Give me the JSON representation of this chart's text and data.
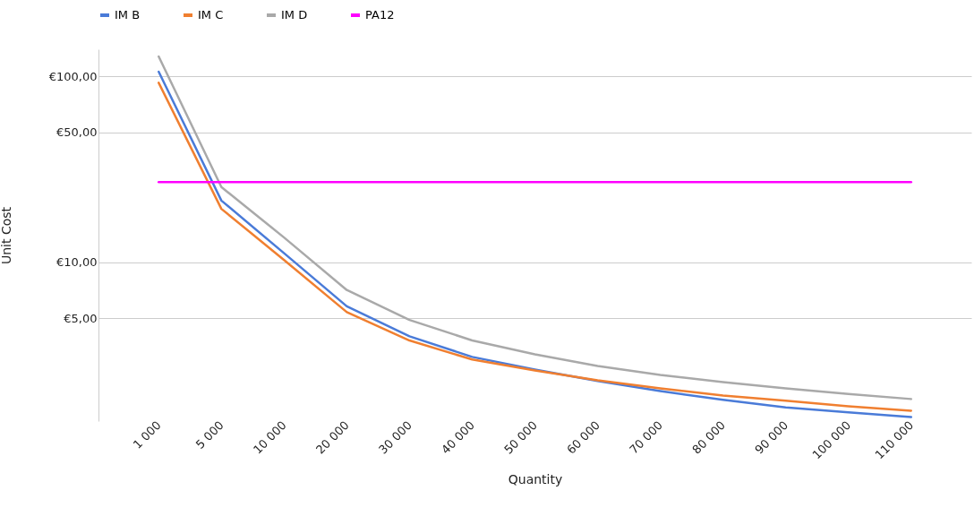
{
  "chart_data": {
    "type": "line",
    "xlabel": "Quantity",
    "ylabel": "Unit Cost",
    "categories": [
      "1 000",
      "5 000",
      "10 000",
      "20 000",
      "30 000",
      "40 000",
      "50 000",
      "60 000",
      "70 000",
      "80 000",
      "90 000",
      "100 000",
      "110 000"
    ],
    "series": [
      {
        "name": "IM B",
        "color": "#4a7bd8",
        "values": [
          106,
          21.5,
          11.2,
          5.8,
          4.0,
          3.1,
          2.65,
          2.3,
          2.03,
          1.82,
          1.66,
          1.56,
          1.47
        ]
      },
      {
        "name": "IM C",
        "color": "#f07f30",
        "values": [
          92.5,
          19.4,
          10.3,
          5.4,
          3.8,
          3.0,
          2.62,
          2.32,
          2.1,
          1.92,
          1.8,
          1.68,
          1.59
        ]
      },
      {
        "name": "IM D",
        "color": "#a9a9a9",
        "values": [
          128,
          25.4,
          13.6,
          7.1,
          4.9,
          3.8,
          3.2,
          2.77,
          2.48,
          2.27,
          2.1,
          1.96,
          1.84
        ]
      },
      {
        "name": "PA12",
        "color": "#ff00ff",
        "values": [
          27,
          27,
          27,
          27,
          27,
          27,
          27,
          27,
          27,
          27,
          27,
          27,
          27
        ]
      }
    ],
    "log": true,
    "ylim": [
      1.4,
      140
    ],
    "yticks": [
      {
        "value": 5,
        "label": "€5,00"
      },
      {
        "value": 10,
        "label": "€10,00"
      },
      {
        "value": 50,
        "label": "€50,00"
      },
      {
        "value": 100,
        "label": "€100,00"
      }
    ],
    "grid": "y",
    "legend": "top",
    "marker": "none",
    "line_style": "solid"
  }
}
